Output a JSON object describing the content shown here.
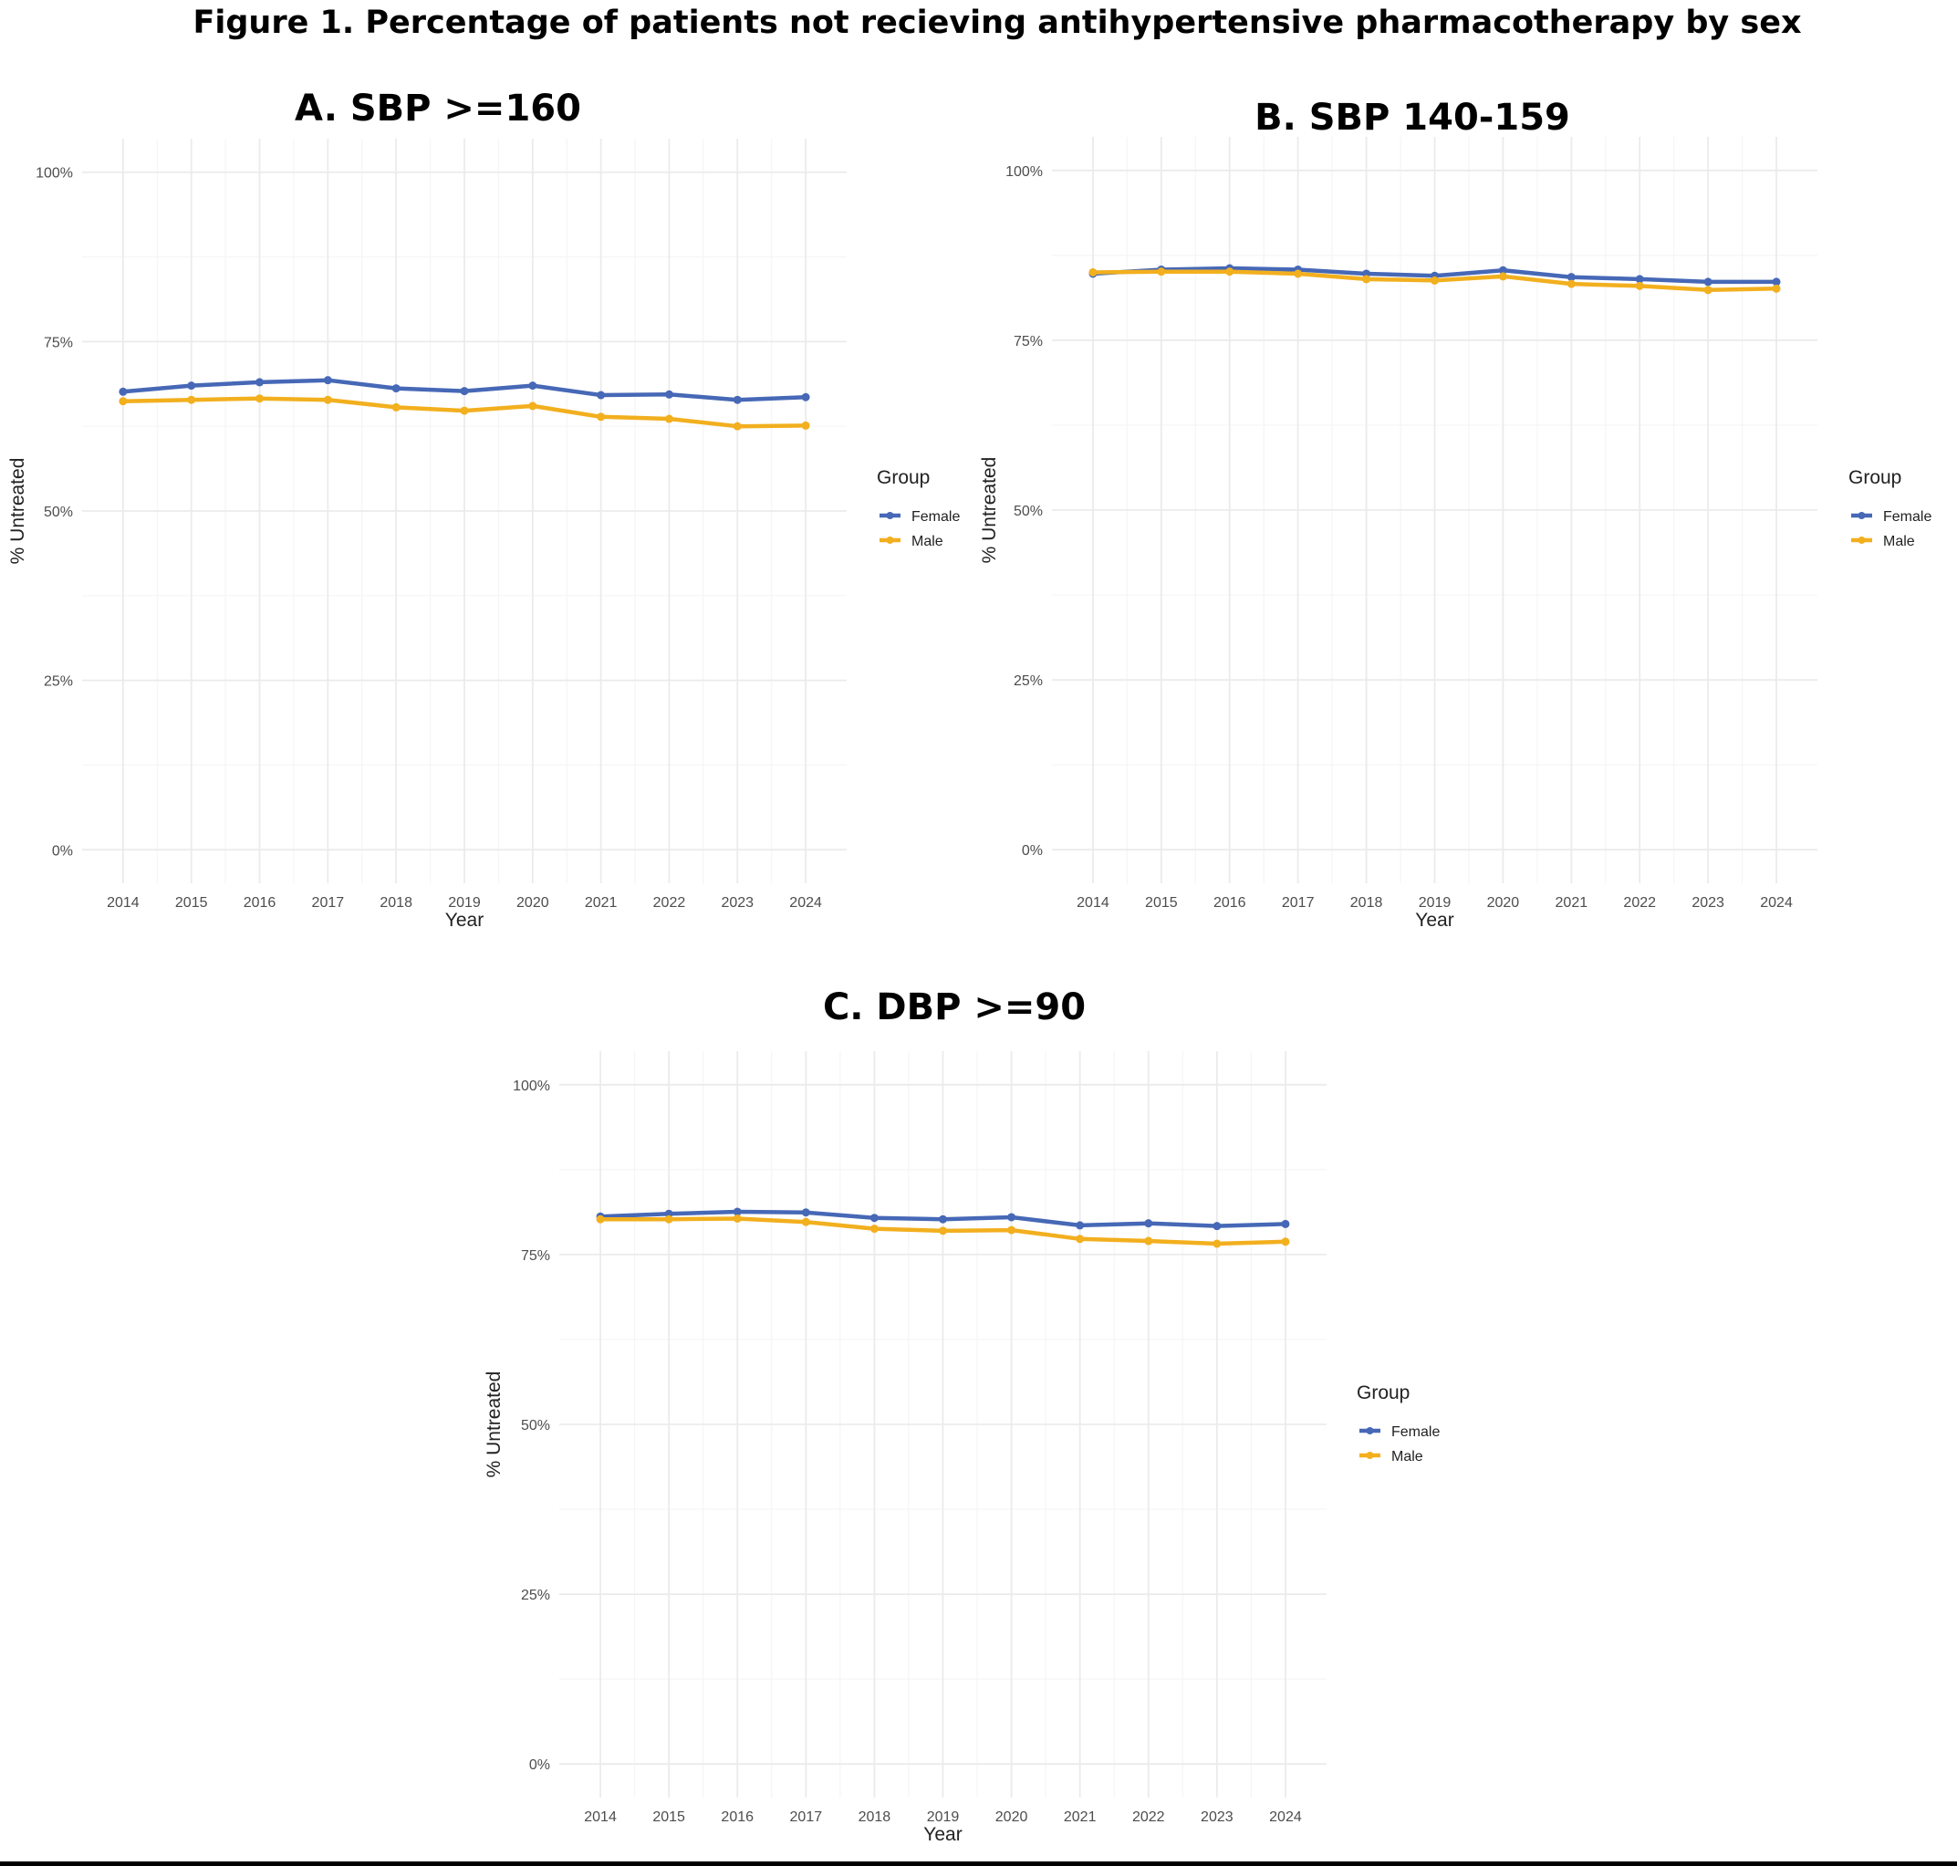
{
  "figure": {
    "title": "Figure 1. Percentage of patients not recieving antihypertensive pharmacotherapy by sex"
  },
  "colors": {
    "female": "#4668b6",
    "male": "#f2af1e",
    "grid_major": "#ebebeb",
    "grid_minor": "#f5f5f5",
    "text": "#222222"
  },
  "chart_data": [
    {
      "type": "line",
      "panel": "A",
      "title": "A.  SBP >=160",
      "xlabel": "Year",
      "ylabel": "% Untreated",
      "x": [
        2014,
        2015,
        2016,
        2017,
        2018,
        2019,
        2020,
        2021,
        2022,
        2023,
        2024
      ],
      "ylim": [
        0,
        100
      ],
      "yticks": [
        "0%",
        "25%",
        "50%",
        "75%",
        "100%"
      ],
      "legend_title": "Group",
      "legend_position": "right",
      "series": [
        {
          "name": "Female",
          "values": [
            67.6,
            68.5,
            69.0,
            69.3,
            68.1,
            67.7,
            68.5,
            67.1,
            67.2,
            66.4,
            66.8
          ]
        },
        {
          "name": "Male",
          "values": [
            66.2,
            66.4,
            66.6,
            66.4,
            65.3,
            64.8,
            65.5,
            63.9,
            63.6,
            62.5,
            62.6
          ]
        }
      ]
    },
    {
      "type": "line",
      "panel": "B",
      "title": "B. SBP 140-159",
      "xlabel": "Year",
      "ylabel": "% Untreated",
      "x": [
        2014,
        2015,
        2016,
        2017,
        2018,
        2019,
        2020,
        2021,
        2022,
        2023,
        2024
      ],
      "ylim": [
        0,
        100
      ],
      "yticks": [
        "0%",
        "25%",
        "50%",
        "75%",
        "100%"
      ],
      "legend_title": "Group",
      "legend_position": "right",
      "series": [
        {
          "name": "Female",
          "values": [
            84.8,
            85.4,
            85.6,
            85.4,
            84.8,
            84.5,
            85.3,
            84.3,
            84.0,
            83.6,
            83.6
          ]
        },
        {
          "name": "Male",
          "values": [
            85.0,
            85.1,
            85.1,
            84.8,
            84.0,
            83.8,
            84.4,
            83.3,
            83.0,
            82.4,
            82.6
          ]
        }
      ]
    },
    {
      "type": "line",
      "panel": "C",
      "title": "C. DBP >=90",
      "xlabel": "Year",
      "ylabel": "% Untreated",
      "x": [
        2014,
        2015,
        2016,
        2017,
        2018,
        2019,
        2020,
        2021,
        2022,
        2023,
        2024
      ],
      "ylim": [
        0,
        100
      ],
      "yticks": [
        "0%",
        "25%",
        "50%",
        "75%",
        "100%"
      ],
      "legend_title": "Group",
      "legend_position": "right",
      "series": [
        {
          "name": "Female",
          "values": [
            80.6,
            81.0,
            81.3,
            81.2,
            80.4,
            80.2,
            80.5,
            79.3,
            79.6,
            79.2,
            79.5
          ]
        },
        {
          "name": "Male",
          "values": [
            80.2,
            80.2,
            80.3,
            79.8,
            78.8,
            78.5,
            78.6,
            77.3,
            77.0,
            76.6,
            76.9
          ]
        }
      ]
    }
  ]
}
